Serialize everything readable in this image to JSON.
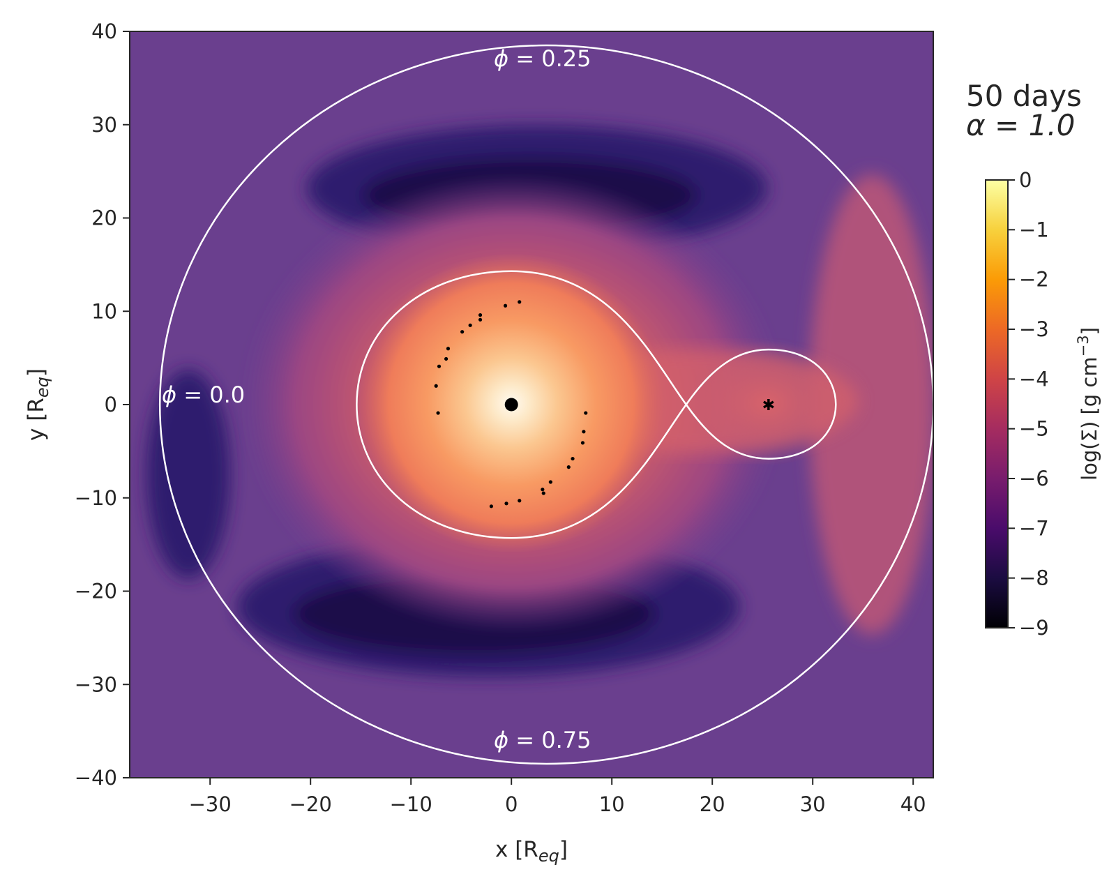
{
  "chart_data": {
    "type": "heatmap",
    "description_units": "x, y in R_eq; colour = log surface density",
    "title_lines": [
      "50 days",
      "α = 1.0"
    ],
    "xlabel": "x [R",
    "xlabel_sub": "eq",
    "xlabel_close": "]",
    "ylabel": "y [R",
    "ylabel_sub": "eq",
    "ylabel_close": "]",
    "xlim": [
      -38,
      42
    ],
    "ylim": [
      -40,
      40
    ],
    "xticks": [
      -30,
      -20,
      -10,
      0,
      10,
      20,
      30,
      40
    ],
    "yticks": [
      -40,
      -30,
      -20,
      -10,
      0,
      10,
      20,
      30,
      40
    ],
    "xtick_labels": [
      "−30",
      "−20",
      "−10",
      "0",
      "10",
      "20",
      "30",
      "40"
    ],
    "ytick_labels": [
      "−40",
      "−30",
      "−20",
      "−10",
      "0",
      "10",
      "20",
      "30",
      "40"
    ],
    "colorbar": {
      "label": "log(Σ) [g cm",
      "label_sup": "−3",
      "label_close": "]",
      "range": [
        -9,
        0
      ],
      "ticks": [
        0,
        -1,
        -2,
        -3,
        -4,
        -5,
        -6,
        -7,
        -8,
        -9
      ],
      "tick_labels": [
        "0",
        "−1",
        "−2",
        "−3",
        "−4",
        "−5",
        "−6",
        "−7",
        "−8",
        "−9"
      ],
      "colormap": "magma",
      "stops": [
        "#000004",
        "#1b0c41",
        "#4a0c6b",
        "#781c6d",
        "#a52c60",
        "#cf4446",
        "#ed6925",
        "#fb9b06",
        "#f7d13d",
        "#fcffa4"
      ]
    },
    "phase_labels": [
      {
        "text_phi": "ϕ",
        "text_val": " = 0.25",
        "position": "top"
      },
      {
        "text_phi": "ϕ",
        "text_val": " = 0.0",
        "position": "left"
      },
      {
        "text_phi": "ϕ",
        "text_val": " = 0.75",
        "position": "bottom"
      }
    ],
    "outer_circle": {
      "center": [
        3.5,
        0
      ],
      "radius": 38.5
    },
    "roche_lobe": {
      "primary_center": [
        0,
        0
      ],
      "secondary_center": [
        25.6,
        0
      ],
      "L1_x": 17.4
    },
    "primary_star": {
      "x": 0,
      "y": 0
    },
    "secondary_star": {
      "x": 25.6,
      "y": 0
    },
    "particles": [
      {
        "x": 0.8,
        "y": 11.0
      },
      {
        "x": -0.6,
        "y": 10.6
      },
      {
        "x": -3.1,
        "y": 9.6
      },
      {
        "x": -3.1,
        "y": 9.1
      },
      {
        "x": -4.1,
        "y": 8.5
      },
      {
        "x": -4.9,
        "y": 7.8
      },
      {
        "x": -6.3,
        "y": 6.0
      },
      {
        "x": -6.5,
        "y": 4.9
      },
      {
        "x": -7.2,
        "y": 4.1
      },
      {
        "x": -7.5,
        "y": 2.0
      },
      {
        "x": -7.3,
        "y": -0.9
      },
      {
        "x": 7.4,
        "y": -0.9
      },
      {
        "x": 7.2,
        "y": -2.9
      },
      {
        "x": 7.1,
        "y": -4.1
      },
      {
        "x": 6.1,
        "y": -5.8
      },
      {
        "x": 5.7,
        "y": -6.7
      },
      {
        "x": 3.9,
        "y": -8.3
      },
      {
        "x": 3.1,
        "y": -9.1
      },
      {
        "x": 3.2,
        "y": -9.5
      },
      {
        "x": 0.8,
        "y": -10.3
      },
      {
        "x": -0.5,
        "y": -10.6
      },
      {
        "x": -2.0,
        "y": -10.9
      }
    ]
  },
  "colors": {
    "background_purple": "#6b3f8f",
    "frame": "#262626",
    "contour": "#ffffff"
  }
}
